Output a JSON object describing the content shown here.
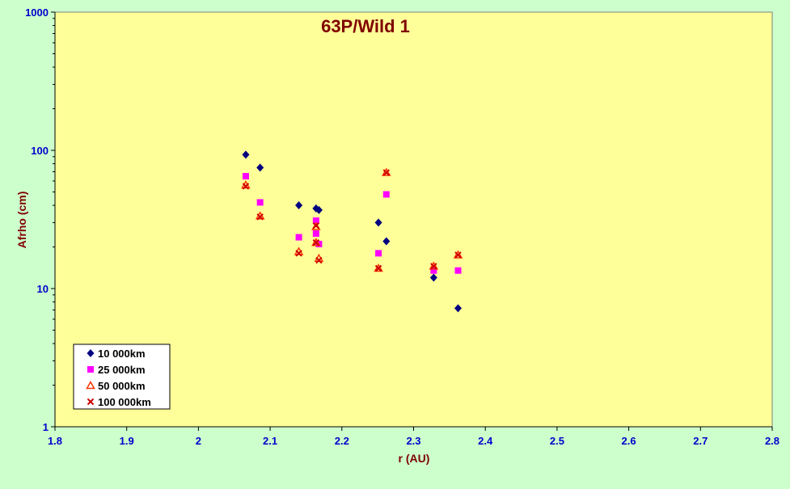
{
  "chart_data": {
    "type": "scatter",
    "title": "63P/Wild 1",
    "xlabel": "r (AU)",
    "ylabel": "Afrho (cm)",
    "xlim": [
      1.8,
      2.8
    ],
    "ylim": [
      1,
      1000
    ],
    "y_scale": "log",
    "x_ticks": [
      "1.8",
      "1.9",
      "2",
      "2.1",
      "2.2",
      "2.3",
      "2.4",
      "2.5",
      "2.6",
      "2.7",
      "2.8"
    ],
    "y_ticks": [
      "1",
      "10",
      "100",
      "1000"
    ],
    "grid": false,
    "legend_position": "bottom-left",
    "series": [
      {
        "name": "10 000km",
        "marker": "diamond",
        "color": "#000080",
        "points": [
          [
            2.066,
            93
          ],
          [
            2.086,
            75
          ],
          [
            2.14,
            40
          ],
          [
            2.164,
            38
          ],
          [
            2.168,
            37
          ],
          [
            2.251,
            30
          ],
          [
            2.262,
            22
          ],
          [
            2.328,
            12
          ],
          [
            2.362,
            7.2
          ]
        ]
      },
      {
        "name": "25 000km",
        "marker": "square",
        "color": "#ff00ff",
        "points": [
          [
            2.066,
            65
          ],
          [
            2.086,
            42
          ],
          [
            2.14,
            23.5
          ],
          [
            2.164,
            31
          ],
          [
            2.164,
            25
          ],
          [
            2.168,
            21
          ],
          [
            2.251,
            18
          ],
          [
            2.262,
            48
          ],
          [
            2.328,
            13.5
          ],
          [
            2.362,
            13.5
          ]
        ]
      },
      {
        "name": "50 000km",
        "marker": "triangle",
        "color": "#ff3300",
        "points": [
          [
            2.066,
            56
          ],
          [
            2.086,
            33.5
          ],
          [
            2.14,
            18.5
          ],
          [
            2.164,
            28
          ],
          [
            2.164,
            21.5
          ],
          [
            2.168,
            16.5
          ],
          [
            2.251,
            14
          ],
          [
            2.262,
            69
          ],
          [
            2.328,
            14.5
          ],
          [
            2.362,
            17.5
          ]
        ]
      },
      {
        "name": "100 000km",
        "marker": "x",
        "color": "#cc0000",
        "points": [
          [
            2.066,
            55
          ],
          [
            2.086,
            33
          ],
          [
            2.14,
            18
          ],
          [
            2.164,
            28.5
          ],
          [
            2.164,
            21.5
          ],
          [
            2.168,
            16
          ],
          [
            2.251,
            14
          ],
          [
            2.262,
            69
          ],
          [
            2.328,
            14.5
          ],
          [
            2.362,
            17.5
          ]
        ]
      }
    ]
  }
}
